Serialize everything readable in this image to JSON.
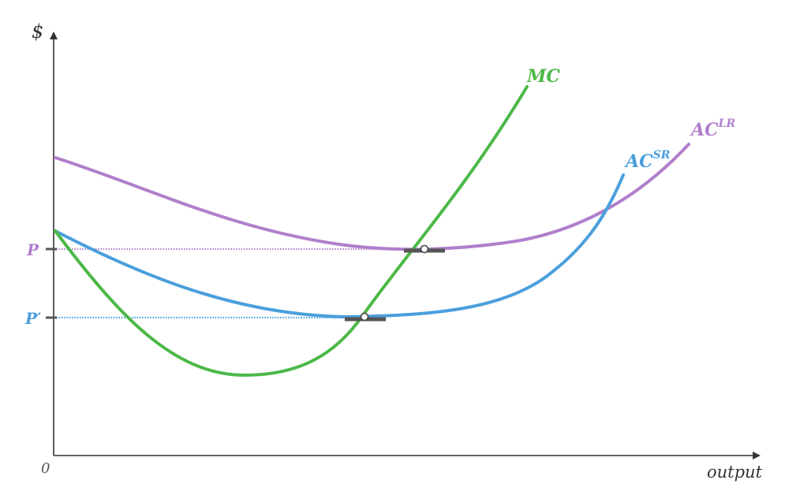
{
  "axes": {
    "y_label": "$",
    "x_label": "output",
    "origin_label": "0"
  },
  "curves": {
    "mc": {
      "label": "MC",
      "color": "#4cb848"
    },
    "ac_sr": {
      "label": "AC",
      "superscript": "SR",
      "color": "#4a9fdc"
    },
    "ac_lr": {
      "label": "AC",
      "superscript": "LR",
      "color": "#b07fcc"
    }
  },
  "prices": {
    "p": {
      "label": "P",
      "color": "#b07fcc"
    },
    "p_prime": {
      "label": "P′",
      "color": "#4a9fdc"
    }
  },
  "colors": {
    "axis": "#333333",
    "tick": "#555555",
    "marker": "#555555"
  }
}
